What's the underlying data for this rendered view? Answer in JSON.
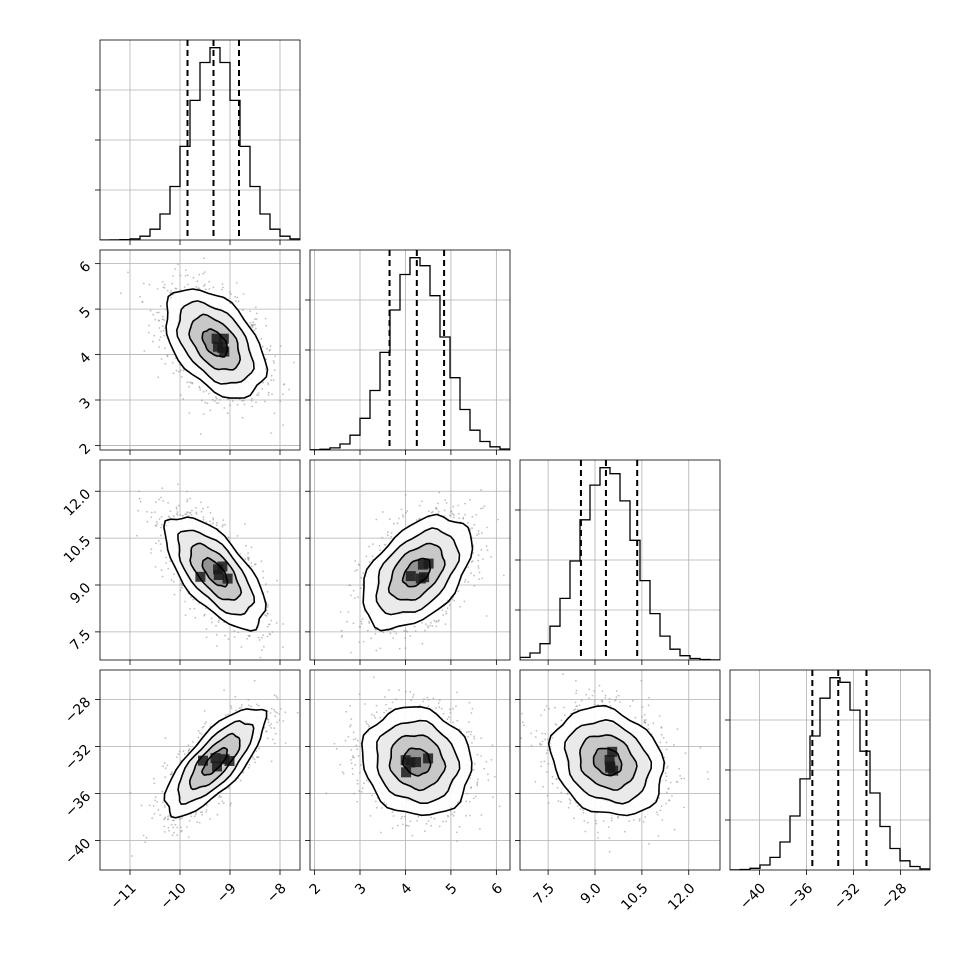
{
  "chart_data": {
    "type": "corner",
    "n_params": 4,
    "params": [
      {
        "range": [
          -11.6,
          -7.6
        ],
        "ticks": [
          -11,
          -10,
          -9,
          -8
        ],
        "tick_labels": [
          "−11",
          "−10",
          "−9",
          "−8"
        ],
        "mean": -9.3,
        "sd": 0.5,
        "quantiles": [
          -9.85,
          -9.33,
          -8.82
        ]
      },
      {
        "range": [
          1.9,
          6.3
        ],
        "ticks": [
          2,
          3,
          4,
          5,
          6
        ],
        "tick_labels": [
          "2",
          "3",
          "4",
          "5",
          "6"
        ],
        "mean": 4.25,
        "sd": 0.6,
        "quantiles": [
          3.65,
          4.25,
          4.85
        ]
      },
      {
        "range": [
          6.6,
          13.0
        ],
        "ticks": [
          7.5,
          9.0,
          10.5,
          12.0
        ],
        "tick_labels": [
          "7.5",
          "9.0",
          "10.5",
          "12.0"
        ],
        "mean": 9.4,
        "sd": 0.9,
        "quantiles": [
          8.55,
          9.35,
          10.35
        ]
      },
      {
        "range": [
          -42.5,
          -25.5
        ],
        "ticks": [
          -40,
          -36,
          -32,
          -28
        ],
        "tick_labels": [
          "−40",
          "−36",
          "−32",
          "−28"
        ],
        "mean": -33.3,
        "sd": 2.3,
        "quantiles": [
          -35.5,
          -33.3,
          -30.9
        ]
      }
    ],
    "correlations": [
      [
        1.0,
        -0.45,
        -0.65,
        0.75
      ],
      [
        -0.45,
        1.0,
        0.45,
        -0.1
      ],
      [
        -0.65,
        0.45,
        1.0,
        -0.2
      ],
      [
        0.75,
        -0.1,
        -0.2,
        1.0
      ]
    ],
    "contour_levels_sigma": [
      0.5,
      1.0,
      1.5,
      2.0
    ],
    "histogram_bins": 20,
    "grid": true,
    "quantile_lines": "dashed",
    "contour_color": "#000000",
    "scatter_color": "#8c8c8c",
    "density_colormap": [
      "#ffffff",
      "#000000"
    ]
  }
}
